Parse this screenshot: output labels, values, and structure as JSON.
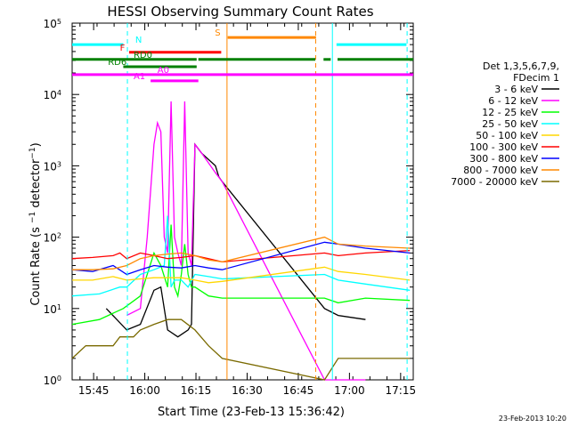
{
  "chart_data": {
    "type": "line",
    "title": "HESSI Observing Summary Count Rates",
    "xlabel": "Start Time (23-Feb-13 15:36:42)",
    "ylabel": "Count Rate (s⁻¹ detector⁻¹)",
    "yscale": "log",
    "ylim": [
      1,
      100000
    ],
    "x_unit": "minutes since 15:36:42",
    "xlim": [
      2,
      102
    ],
    "x_ticks": [
      {
        "x": 8.3,
        "label": "15:45"
      },
      {
        "x": 23.3,
        "label": "16:00"
      },
      {
        "x": 38.3,
        "label": "16:15"
      },
      {
        "x": 53.3,
        "label": "16:30"
      },
      {
        "x": 68.3,
        "label": "16:45"
      },
      {
        "x": 83.3,
        "label": "17:00"
      },
      {
        "x": 98.3,
        "label": "17:15"
      }
    ],
    "y_ticks": [
      {
        "v": 1,
        "base": "10",
        "exp": "0"
      },
      {
        "v": 10,
        "base": "10",
        "exp": "1"
      },
      {
        "v": 100,
        "base": "10",
        "exp": "2"
      },
      {
        "v": 1000,
        "base": "10",
        "exp": "3"
      },
      {
        "v": 10000,
        "base": "10",
        "exp": "4"
      },
      {
        "v": 100000,
        "base": "10",
        "exp": "5"
      }
    ],
    "legend": {
      "placement": "right",
      "header": [
        "Det 1,3,5,6,7,9,",
        "FDecim 1"
      ]
    },
    "series": [
      {
        "name": "3 - 6 keV",
        "color": "#000000",
        "points": [
          [
            12,
            10
          ],
          [
            18,
            5
          ],
          [
            22,
            6
          ],
          [
            26,
            18
          ],
          [
            28,
            20
          ],
          [
            30,
            5
          ],
          [
            33,
            4
          ],
          [
            36,
            5
          ],
          [
            37,
            6
          ],
          [
            38,
            2000
          ],
          [
            40,
            1500
          ],
          [
            44,
            1000
          ],
          [
            45,
            700
          ],
          [
            46,
            600
          ],
          [
            76,
            10
          ],
          [
            80,
            8
          ],
          [
            88,
            7
          ]
        ]
      },
      {
        "name": "6 - 12 keV",
        "color": "#ff00ff",
        "points": [
          [
            18,
            8
          ],
          [
            22,
            10
          ],
          [
            24,
            100
          ],
          [
            26,
            2000
          ],
          [
            27,
            4000
          ],
          [
            28,
            3000
          ],
          [
            29,
            100
          ],
          [
            30,
            60
          ],
          [
            31,
            8000
          ],
          [
            32,
            100
          ],
          [
            33,
            60
          ],
          [
            34,
            40
          ],
          [
            35,
            8000
          ],
          [
            36,
            60
          ],
          [
            37,
            40
          ],
          [
            38,
            2000
          ],
          [
            40,
            1500
          ],
          [
            44,
            800
          ],
          [
            46,
            600
          ],
          [
            76,
            1
          ],
          [
            88,
            1
          ]
        ]
      },
      {
        "name": "12 - 25 keV",
        "color": "#00ff00",
        "points": [
          [
            2,
            6
          ],
          [
            10,
            7
          ],
          [
            17,
            10
          ],
          [
            22,
            15
          ],
          [
            26,
            60
          ],
          [
            28,
            40
          ],
          [
            30,
            20
          ],
          [
            31,
            150
          ],
          [
            32,
            20
          ],
          [
            33,
            15
          ],
          [
            34,
            30
          ],
          [
            35,
            80
          ],
          [
            36,
            30
          ],
          [
            37,
            20
          ],
          [
            38,
            20
          ],
          [
            42,
            15
          ],
          [
            46,
            14
          ],
          [
            76,
            14
          ],
          [
            80,
            12
          ],
          [
            88,
            14
          ],
          [
            101,
            13
          ]
        ]
      },
      {
        "name": "25 - 50 keV",
        "color": "#00ffff",
        "points": [
          [
            2,
            15
          ],
          [
            10,
            16
          ],
          [
            16,
            20
          ],
          [
            18,
            20
          ],
          [
            22,
            30
          ],
          [
            26,
            35
          ],
          [
            29,
            40
          ],
          [
            30,
            200
          ],
          [
            31,
            20
          ],
          [
            32,
            25
          ],
          [
            34,
            25
          ],
          [
            36,
            20
          ],
          [
            38,
            30
          ],
          [
            42,
            28
          ],
          [
            46,
            26
          ],
          [
            76,
            30
          ],
          [
            80,
            25
          ],
          [
            88,
            22
          ],
          [
            101,
            18
          ]
        ]
      },
      {
        "name": "50 - 100 keV",
        "color": "#ffd700",
        "points": [
          [
            2,
            25
          ],
          [
            8,
            25
          ],
          [
            14,
            28
          ],
          [
            18,
            25
          ],
          [
            22,
            26
          ],
          [
            26,
            27
          ],
          [
            30,
            27
          ],
          [
            34,
            27
          ],
          [
            38,
            25
          ],
          [
            42,
            23
          ],
          [
            46,
            24
          ],
          [
            76,
            38
          ],
          [
            80,
            33
          ],
          [
            88,
            30
          ],
          [
            101,
            25
          ]
        ]
      },
      {
        "name": "100 - 300 keV",
        "color": "#ff0000",
        "points": [
          [
            2,
            50
          ],
          [
            8,
            52
          ],
          [
            14,
            55
          ],
          [
            16,
            60
          ],
          [
            18,
            50
          ],
          [
            22,
            60
          ],
          [
            26,
            55
          ],
          [
            30,
            50
          ],
          [
            34,
            52
          ],
          [
            38,
            55
          ],
          [
            42,
            50
          ],
          [
            46,
            45
          ],
          [
            76,
            60
          ],
          [
            80,
            55
          ],
          [
            88,
            60
          ],
          [
            101,
            65
          ]
        ]
      },
      {
        "name": "300 - 800 keV",
        "color": "#0000ff",
        "points": [
          [
            2,
            35
          ],
          [
            8,
            33
          ],
          [
            14,
            40
          ],
          [
            18,
            30
          ],
          [
            22,
            35
          ],
          [
            26,
            40
          ],
          [
            30,
            38
          ],
          [
            34,
            37
          ],
          [
            38,
            40
          ],
          [
            42,
            37
          ],
          [
            46,
            35
          ],
          [
            76,
            85
          ],
          [
            80,
            80
          ],
          [
            88,
            70
          ],
          [
            101,
            60
          ]
        ]
      },
      {
        "name": "800 - 7000 keV",
        "color": "#ff8800",
        "points": [
          [
            2,
            35
          ],
          [
            8,
            35
          ],
          [
            14,
            36
          ],
          [
            18,
            40
          ],
          [
            22,
            50
          ],
          [
            26,
            55
          ],
          [
            30,
            58
          ],
          [
            34,
            60
          ],
          [
            38,
            55
          ],
          [
            42,
            48
          ],
          [
            46,
            45
          ],
          [
            76,
            100
          ],
          [
            80,
            80
          ],
          [
            88,
            75
          ],
          [
            101,
            70
          ]
        ]
      },
      {
        "name": "7000 - 20000 keV",
        "color": "#7a6a00",
        "points": [
          [
            2,
            2
          ],
          [
            6,
            3
          ],
          [
            10,
            3
          ],
          [
            14,
            3
          ],
          [
            16,
            4
          ],
          [
            18,
            4
          ],
          [
            20,
            4
          ],
          [
            22,
            5
          ],
          [
            26,
            6
          ],
          [
            30,
            7
          ],
          [
            34,
            7
          ],
          [
            38,
            5
          ],
          [
            42,
            3
          ],
          [
            46,
            2
          ],
          [
            76,
            1
          ],
          [
            80,
            2
          ],
          [
            88,
            2
          ],
          [
            101,
            2
          ]
        ]
      }
    ],
    "vertical_lines": [
      {
        "x": 18.2,
        "color": "#00ffff",
        "style": "dashed"
      },
      {
        "x": 47.4,
        "color": "#ff8800",
        "style": "solid"
      },
      {
        "x": 73.4,
        "color": "#ff8800",
        "style": "dashed"
      },
      {
        "x": 78.3,
        "color": "#00ffff",
        "style": "solid"
      },
      {
        "x": 100.2,
        "color": "#00ffff",
        "style": "dashed"
      }
    ],
    "flag_bars": [
      {
        "label": "N",
        "color": "#00ffff",
        "y": 50000,
        "segments": [
          [
            2,
            17
          ],
          [
            79.5,
            100
          ]
        ],
        "label_x": 20.5,
        "label_side": "right"
      },
      {
        "label": "S",
        "color": "#ff8800",
        "y": 63000,
        "segments": [
          [
            47.6,
            73.5
          ]
        ],
        "label_x": 45.5,
        "label_side": "left"
      },
      {
        "label": "F",
        "color": "#ff0000",
        "y": 39000,
        "segments": [
          [
            18.7,
            45.7
          ]
        ],
        "label_x": 17.5,
        "label_side": "left"
      },
      {
        "label": "RD0",
        "color": "#008000",
        "y": 31000,
        "segments": [
          [
            2,
            38.5
          ],
          [
            39,
            73.3
          ],
          [
            75.7,
            77.8
          ],
          [
            79.8,
            102
          ]
        ],
        "label_x": 20,
        "label_side": "right"
      },
      {
        "label": "RD6",
        "color": "#008000",
        "y": 24500,
        "segments": [
          [
            17,
            38.5
          ]
        ],
        "label_x": 12.5,
        "label_side": "right"
      },
      {
        "label": "A0",
        "color": "#ff00ff",
        "y": 19000,
        "segments": [
          [
            2,
            102
          ]
        ],
        "label_x": 27,
        "label_side": "right"
      },
      {
        "label": "A1",
        "color": "#ff00ff",
        "y": 15500,
        "segments": [
          [
            25,
            39
          ]
        ],
        "label_x": 20,
        "label_side": "right"
      }
    ],
    "footer_date": "23-Feb-2013 10:20"
  }
}
